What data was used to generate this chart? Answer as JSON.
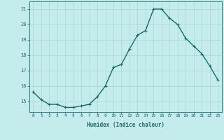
{
  "x": [
    0,
    1,
    2,
    3,
    4,
    5,
    6,
    7,
    8,
    9,
    10,
    11,
    12,
    13,
    14,
    15,
    16,
    17,
    18,
    19,
    20,
    21,
    22,
    23
  ],
  "y": [
    15.6,
    15.1,
    14.8,
    14.8,
    14.6,
    14.6,
    14.7,
    14.8,
    15.3,
    16.0,
    17.2,
    17.4,
    18.4,
    19.3,
    19.6,
    21.0,
    21.0,
    20.4,
    20.0,
    19.1,
    18.6,
    18.1,
    17.3,
    16.4
  ],
  "bg_color": "#c5eced",
  "line_color": "#1a6b6b",
  "grid_color": "#aad4d4",
  "xlabel": "Humidex (Indice chaleur)",
  "ylim": [
    14.3,
    21.5
  ],
  "xlim": [
    -0.5,
    23.5
  ],
  "yticks": [
    15,
    16,
    17,
    18,
    19,
    20,
    21
  ],
  "xticks": [
    0,
    1,
    2,
    3,
    4,
    5,
    6,
    7,
    8,
    9,
    10,
    11,
    12,
    13,
    14,
    15,
    16,
    17,
    18,
    19,
    20,
    21,
    22,
    23
  ],
  "marker_size": 3.5,
  "line_width": 1.0
}
